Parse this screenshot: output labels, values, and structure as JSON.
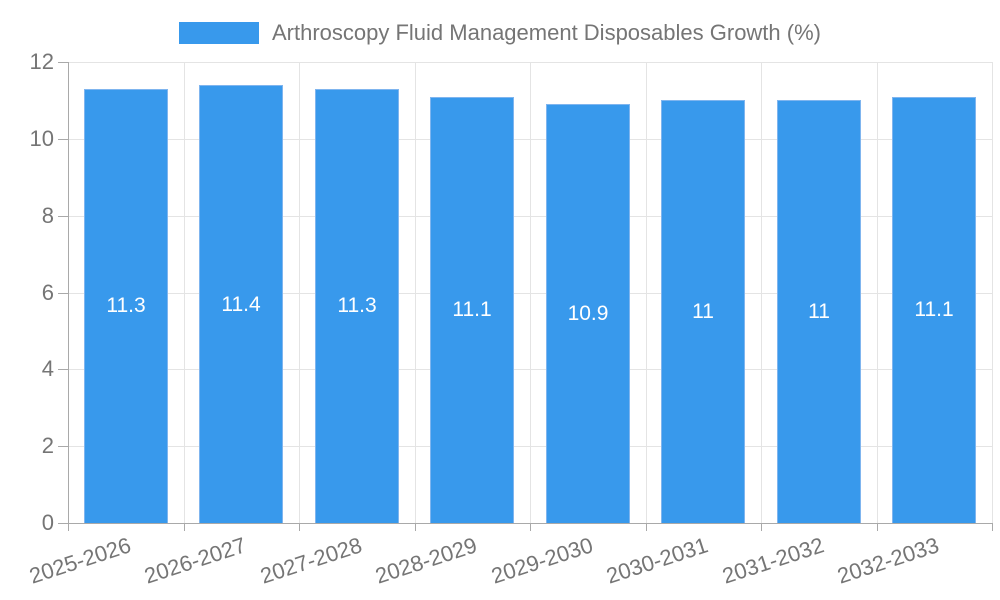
{
  "legend": {
    "series_label": "Arthroscopy Fluid Management Disposables Growth (%)"
  },
  "chart_data": {
    "type": "bar",
    "title": "Arthroscopy Fluid Management Disposables Growth (%)",
    "categories": [
      "2025-2026",
      "2026-2027",
      "2027-2028",
      "2028-2029",
      "2029-2030",
      "2030-2031",
      "2031-2032",
      "2032-2033"
    ],
    "values": [
      11.3,
      11.4,
      11.3,
      11.1,
      10.9,
      11,
      11,
      11.1
    ],
    "bar_labels": [
      "11.3",
      "11.4",
      "11.3",
      "11.1",
      "10.9",
      "11",
      "11",
      "11.1"
    ],
    "xlabel": "",
    "ylabel": "",
    "ylim": [
      0,
      12
    ],
    "yticks": [
      0,
      2,
      4,
      6,
      8,
      10,
      12
    ],
    "grid": true,
    "legend_position": "top",
    "colors": {
      "bar": "#3899EC",
      "bar_border": "#7FB5EF",
      "bar_label": "#FFFFFF",
      "axis_text": "#757575",
      "gridline": "#E4E4E4",
      "axis_line": "#A9A9A9",
      "background": "#FFFFFF"
    }
  }
}
